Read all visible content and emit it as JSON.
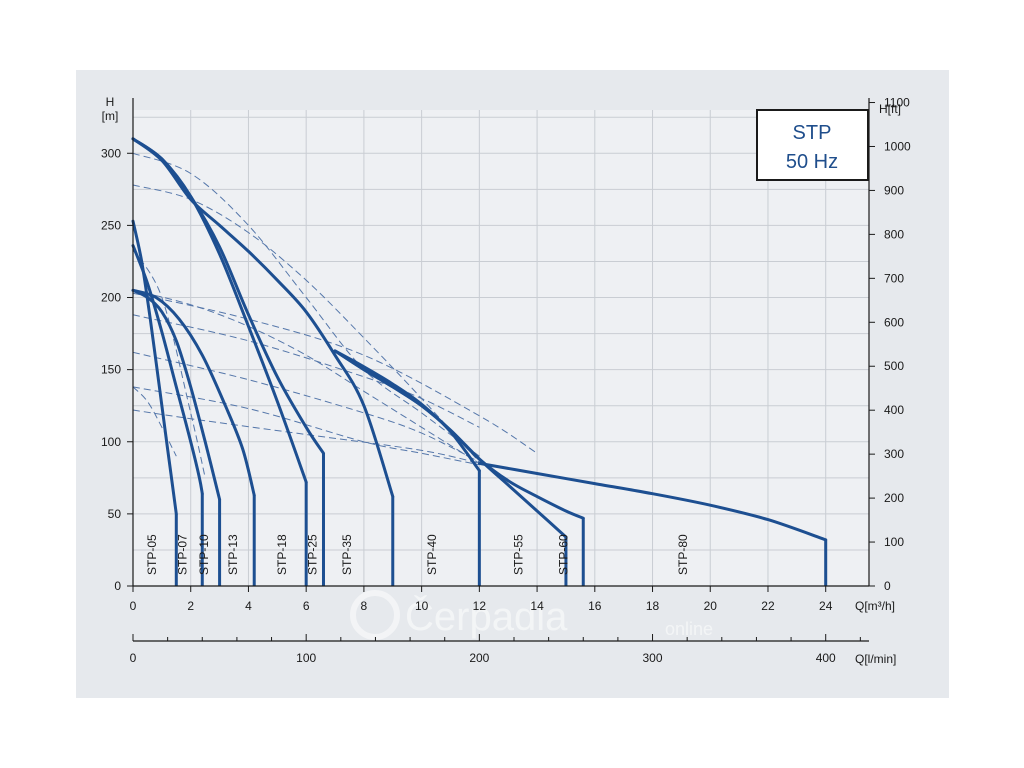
{
  "chart_data": {
    "type": "line",
    "box": {
      "line1": "STP",
      "line2": "50 Hz"
    },
    "y_left": {
      "label_line1": "H",
      "label_line2": "[m]",
      "range": [
        0,
        330
      ],
      "ticks": [
        0,
        50,
        100,
        150,
        200,
        250,
        300
      ]
    },
    "y_right": {
      "label": "H[ft]",
      "range": [
        0,
        1083
      ],
      "ticks": [
        0,
        100,
        200,
        300,
        400,
        500,
        600,
        700,
        800,
        900,
        1000,
        1100
      ]
    },
    "x_top": {
      "label": "Q[m³/h]",
      "range": [
        0,
        25.5
      ],
      "ticks": [
        0,
        2,
        4,
        6,
        8,
        10,
        12,
        14,
        16,
        18,
        20,
        22,
        24
      ]
    },
    "x_bottom": {
      "label": "Q[l/min]",
      "range": [
        0,
        425
      ],
      "ticks": [
        0,
        100,
        200,
        300,
        400
      ]
    },
    "series": [
      {
        "name": "STP-05",
        "label_x": 0.8,
        "points": [
          [
            0,
            253
          ],
          [
            0.3,
            225
          ],
          [
            0.6,
            185
          ],
          [
            0.9,
            140
          ],
          [
            1.2,
            95
          ],
          [
            1.5,
            50
          ]
        ],
        "end": 1.5
      },
      {
        "name": "STP-07",
        "label_x": 1.85,
        "points": [
          [
            0,
            236
          ],
          [
            0.5,
            210
          ],
          [
            1.0,
            176
          ],
          [
            1.5,
            138
          ],
          [
            2.0,
            100
          ],
          [
            2.3,
            75
          ],
          [
            2.4,
            64
          ]
        ],
        "end": 2.4
      },
      {
        "name": "STP-10",
        "label_x": 2.6,
        "points": [
          [
            0,
            205
          ],
          [
            0.5,
            200
          ],
          [
            1.0,
            190
          ],
          [
            1.5,
            170
          ],
          [
            2.0,
            138
          ],
          [
            2.5,
            100
          ],
          [
            3.0,
            60
          ]
        ],
        "end": 3.0
      },
      {
        "name": "STP-13",
        "label_x": 3.6,
        "points": [
          [
            0,
            205
          ],
          [
            0.8,
            200
          ],
          [
            1.6,
            185
          ],
          [
            2.4,
            160
          ],
          [
            3.2,
            125
          ],
          [
            3.8,
            95
          ],
          [
            4.2,
            63
          ]
        ],
        "end": 4.2
      },
      {
        "name": "STP-18",
        "label_x": 5.3,
        "points": [
          [
            0,
            310
          ],
          [
            1.0,
            296
          ],
          [
            2.0,
            270
          ],
          [
            3.0,
            230
          ],
          [
            4.0,
            180
          ],
          [
            5.0,
            128
          ],
          [
            6.0,
            72
          ]
        ],
        "end": 6.0
      },
      {
        "name": "STP-25",
        "label_x": 6.35,
        "points": [
          [
            0,
            310
          ],
          [
            1.0,
            296
          ],
          [
            2.0,
            270
          ],
          [
            3.0,
            235
          ],
          [
            4.0,
            188
          ],
          [
            5.0,
            145
          ],
          [
            6.0,
            110
          ],
          [
            6.6,
            92
          ]
        ],
        "end": 6.6
      },
      {
        "name": "STP-35",
        "label_x": 7.55,
        "points": [
          [
            0,
            310
          ],
          [
            1.0,
            295
          ],
          [
            2.0,
            268
          ],
          [
            3.0,
            250
          ],
          [
            4.0,
            232
          ],
          [
            5.0,
            212
          ],
          [
            6.0,
            190
          ],
          [
            7.0,
            160
          ],
          [
            8.0,
            125
          ],
          [
            9.0,
            62
          ]
        ],
        "end": 9.0
      },
      {
        "name": "STP-40",
        "label_x": 10.5,
        "points": [
          [
            7.0,
            163
          ],
          [
            8.0,
            152
          ],
          [
            9.0,
            140
          ],
          [
            10.0,
            126
          ],
          [
            11.0,
            107
          ],
          [
            12.0,
            80
          ]
        ],
        "end": 12.0
      },
      {
        "name": "STP-55",
        "label_x": 13.5,
        "points": [
          [
            7.0,
            163
          ],
          [
            8.0,
            150
          ],
          [
            9.0,
            138
          ],
          [
            10.0,
            125
          ],
          [
            11.0,
            108
          ],
          [
            12.0,
            88
          ],
          [
            13.0,
            70
          ],
          [
            14.0,
            52
          ],
          [
            15.0,
            34
          ]
        ],
        "end": 15.0
      },
      {
        "name": "STP-60",
        "label_x": 15.05,
        "points": [
          [
            7.0,
            163
          ],
          [
            8.0,
            150
          ],
          [
            9.0,
            138
          ],
          [
            10.0,
            125
          ],
          [
            11.0,
            108
          ],
          [
            12.0,
            88
          ],
          [
            13.0,
            73
          ],
          [
            14.0,
            62
          ],
          [
            15.0,
            52
          ],
          [
            15.6,
            47
          ]
        ],
        "end": 15.6
      },
      {
        "name": "STP-80",
        "label_x": 19.2,
        "points": [
          [
            12.0,
            85
          ],
          [
            14.0,
            78
          ],
          [
            16.0,
            71
          ],
          [
            18.0,
            64
          ],
          [
            20.0,
            56
          ],
          [
            22.0,
            46
          ],
          [
            24.0,
            32
          ]
        ],
        "end": 24.0
      }
    ],
    "dashed": [
      [
        [
          0,
          300
        ],
        [
          2,
          286
        ],
        [
          4,
          250
        ],
        [
          6,
          200
        ],
        [
          8,
          150
        ],
        [
          10,
          120
        ],
        [
          12,
          90
        ]
      ],
      [
        [
          0,
          278
        ],
        [
          2,
          268
        ],
        [
          4,
          245
        ],
        [
          6,
          212
        ],
        [
          8,
          172
        ],
        [
          10,
          130
        ],
        [
          12,
          86
        ]
      ],
      [
        [
          0,
          205
        ],
        [
          2,
          195
        ],
        [
          4,
          180
        ],
        [
          6,
          160
        ],
        [
          8,
          135
        ],
        [
          10,
          110
        ],
        [
          12,
          85
        ]
      ],
      [
        [
          0,
          203
        ],
        [
          4,
          185
        ],
        [
          8,
          160
        ],
        [
          12,
          118
        ],
        [
          14,
          92
        ]
      ],
      [
        [
          0,
          188
        ],
        [
          4,
          170
        ],
        [
          8,
          145
        ],
        [
          10,
          130
        ],
        [
          12,
          110
        ]
      ],
      [
        [
          0,
          162
        ],
        [
          4,
          143
        ],
        [
          8,
          120
        ],
        [
          10,
          106
        ],
        [
          12,
          86
        ]
      ],
      [
        [
          0,
          138
        ],
        [
          4,
          123
        ],
        [
          8,
          100
        ],
        [
          10,
          92
        ],
        [
          12,
          84
        ]
      ],
      [
        [
          0,
          122
        ],
        [
          2,
          116
        ],
        [
          6,
          105
        ],
        [
          10,
          94
        ],
        [
          12,
          85
        ]
      ],
      [
        [
          0,
          233
        ],
        [
          1,
          200
        ],
        [
          2,
          120
        ],
        [
          2.5,
          75
        ]
      ],
      [
        [
          0,
          138
        ],
        [
          0.5,
          128
        ],
        [
          1,
          110
        ],
        [
          1.5,
          90
        ]
      ]
    ]
  },
  "watermark": {
    "text": "Čerpadla",
    "sub": "online"
  },
  "colors": {
    "curve": "#1d4f91",
    "dashed": "#5577aa",
    "grid": "#c9cdd3",
    "panel": "#e6e9ed"
  }
}
